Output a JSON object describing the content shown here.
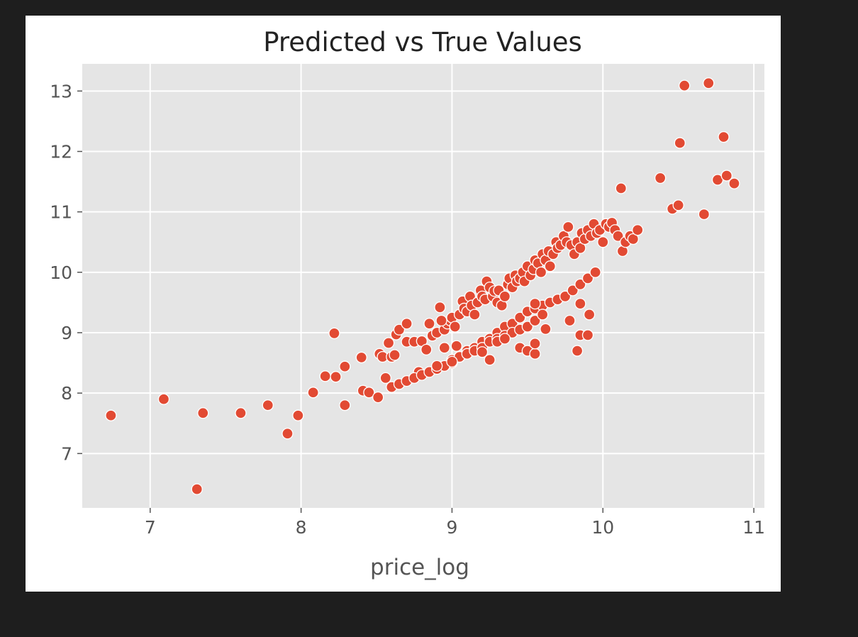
{
  "chart_data": {
    "type": "scatter",
    "title": "Predicted vs True Values",
    "xlabel": "price_log",
    "ylabel": "",
    "xlim": [
      6.55,
      11.07
    ],
    "ylim": [
      6.1,
      13.45
    ],
    "xticks": [
      7,
      8,
      9,
      10,
      11
    ],
    "yticks": [
      7,
      8,
      9,
      10,
      11,
      12,
      13
    ],
    "grid": true,
    "legend": "none",
    "colors": {
      "point": "#E24A33",
      "plot_bg": "#E5E5E5",
      "grid": "#FFFFFF"
    },
    "series": [
      {
        "x": [
          6.74,
          7.09,
          7.31,
          7.35,
          7.6,
          7.78,
          7.91,
          7.98,
          8.08,
          8.16,
          8.22,
          8.23,
          8.29,
          8.29,
          8.4,
          8.41,
          8.45,
          8.51,
          8.52,
          8.54,
          8.56,
          8.58,
          8.6,
          8.62,
          8.63,
          8.65,
          8.7,
          8.7,
          8.75,
          8.78,
          8.8,
          8.83,
          8.85,
          8.87,
          8.9,
          8.92,
          8.95,
          8.97,
          8.99,
          9.0,
          9.02,
          9.03,
          9.05,
          9.07,
          9.08,
          9.1,
          9.12,
          9.13,
          9.15,
          9.17,
          9.19,
          9.2,
          9.22,
          9.23,
          9.25,
          9.27,
          9.28,
          9.3,
          9.31,
          9.33,
          9.35,
          9.37,
          9.38,
          9.4,
          9.42,
          9.43,
          9.45,
          9.47,
          9.48,
          9.5,
          9.52,
          9.54,
          9.55,
          9.57,
          9.59,
          9.6,
          9.62,
          9.64,
          9.65,
          9.67,
          9.69,
          9.7,
          9.72,
          9.74,
          9.76,
          9.77,
          9.79,
          9.81,
          9.83,
          9.85,
          9.86,
          9.88,
          9.9,
          9.92,
          9.94,
          9.96,
          9.98,
          10.0,
          10.02,
          10.04,
          10.06,
          10.08,
          10.1,
          10.13,
          10.15,
          10.18,
          10.2,
          10.23,
          9.0,
          9.05,
          9.1,
          9.15,
          9.2,
          9.25,
          9.3,
          9.35,
          9.4,
          9.45,
          9.5,
          9.55,
          9.6,
          9.65,
          9.7,
          9.75,
          9.8,
          9.85,
          9.9,
          9.95,
          8.6,
          8.65,
          8.7,
          8.75,
          8.8,
          8.85,
          8.9,
          8.95,
          9.0,
          9.05,
          9.1,
          9.15,
          9.2,
          9.25,
          9.3,
          9.35,
          9.4,
          9.45,
          9.5,
          9.55,
          9.6,
          9.62,
          9.3,
          9.35,
          9.45,
          9.5,
          9.55,
          9.25,
          9.2,
          9.78,
          9.83,
          9.85,
          9.9,
          9.91,
          9.85,
          9.55,
          9.55,
          9.0,
          8.9,
          8.95,
          8.93,
          8.92,
          10.12,
          10.38,
          10.46,
          10.5,
          10.51,
          10.54,
          10.67,
          10.7,
          10.76,
          10.8,
          10.82,
          10.87
        ],
        "y": [
          7.63,
          7.9,
          6.41,
          7.67,
          7.67,
          7.8,
          7.33,
          7.63,
          8.01,
          8.28,
          8.99,
          8.27,
          8.44,
          7.8,
          8.59,
          8.04,
          8.01,
          7.93,
          8.65,
          8.6,
          8.25,
          8.83,
          8.6,
          8.63,
          8.97,
          9.05,
          8.85,
          9.15,
          8.85,
          8.35,
          8.86,
          8.72,
          9.15,
          8.95,
          9.0,
          9.42,
          9.05,
          9.15,
          9.2,
          9.25,
          9.1,
          8.78,
          9.3,
          9.52,
          9.4,
          9.35,
          9.6,
          9.45,
          9.3,
          9.5,
          9.7,
          9.6,
          9.55,
          9.85,
          9.75,
          9.6,
          9.69,
          9.5,
          9.7,
          9.45,
          9.6,
          9.8,
          9.9,
          9.75,
          9.95,
          9.85,
          9.9,
          10.0,
          9.85,
          10.1,
          9.95,
          10.05,
          10.2,
          10.15,
          10.0,
          10.3,
          10.2,
          10.35,
          10.1,
          10.3,
          10.5,
          10.4,
          10.45,
          10.6,
          10.5,
          10.75,
          10.45,
          10.3,
          10.5,
          10.4,
          10.65,
          10.55,
          10.7,
          10.6,
          10.8,
          10.65,
          10.7,
          10.5,
          10.8,
          10.75,
          10.82,
          10.7,
          10.6,
          10.35,
          10.5,
          10.6,
          10.55,
          10.7,
          8.5,
          8.6,
          8.7,
          8.75,
          8.85,
          8.9,
          9.0,
          9.1,
          9.15,
          9.25,
          9.35,
          9.4,
          9.45,
          9.5,
          9.55,
          9.6,
          9.7,
          9.8,
          9.9,
          10.0,
          8.1,
          8.15,
          8.2,
          8.25,
          8.3,
          8.35,
          8.4,
          8.45,
          8.55,
          8.6,
          8.65,
          8.7,
          8.75,
          8.85,
          8.9,
          8.95,
          9.0,
          9.05,
          9.1,
          9.2,
          9.3,
          9.06,
          8.85,
          8.9,
          8.75,
          8.7,
          8.65,
          8.55,
          8.68,
          9.2,
          8.7,
          8.96,
          8.96,
          9.3,
          9.48,
          9.48,
          8.82,
          8.52,
          8.45,
          8.75,
          9.2,
          9.42,
          11.39,
          11.56,
          11.05,
          11.11,
          12.14,
          13.09,
          10.96,
          13.13,
          11.53,
          12.24,
          11.6,
          11.47
        ]
      }
    ]
  }
}
